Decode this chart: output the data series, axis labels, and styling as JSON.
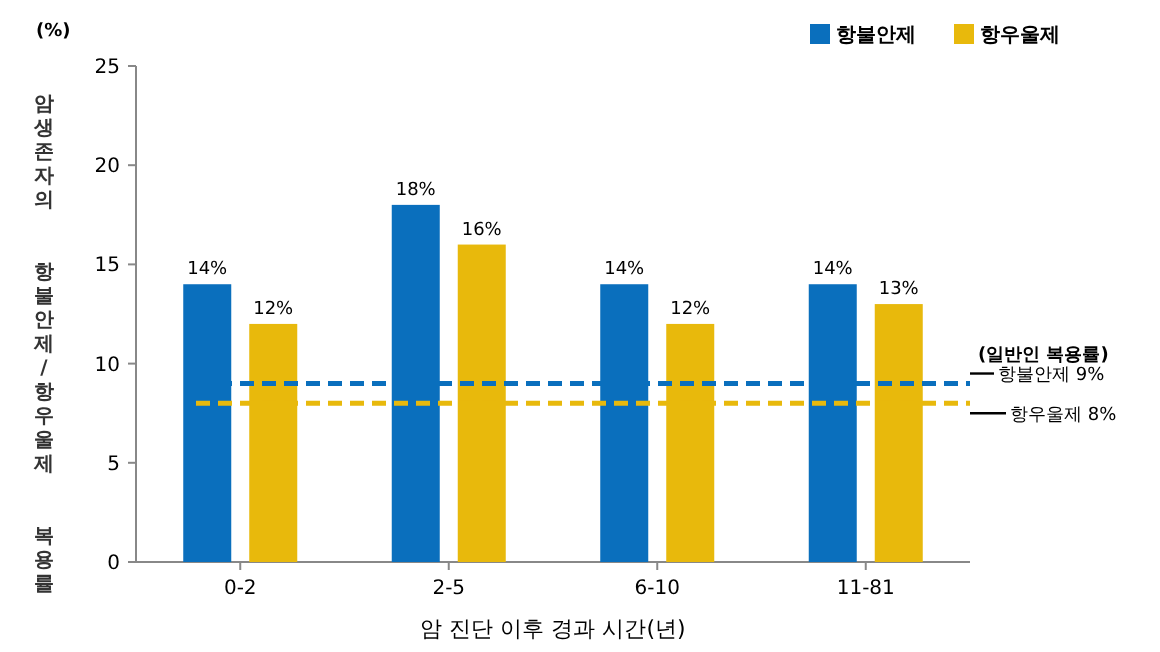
{
  "chart_data": {
    "type": "bar",
    "xlabel": "암 진단 이후 경과 시간(년)",
    "ylabel": "암생존자의 항불안제/항우울제 복용률",
    "categories": [
      "0-2",
      "2-5",
      "6-10",
      "11-81"
    ],
    "series": [
      {
        "name": "항불안제",
        "color": "#0a6fbd",
        "values": [
          14,
          18,
          14,
          14
        ],
        "value_labels": [
          "14%",
          "18%",
          "14%",
          "14%"
        ]
      },
      {
        "name": "항우울제",
        "color": "#e8b90c",
        "values": [
          12,
          16,
          12,
          13
        ],
        "value_labels": [
          "12%",
          "16%",
          "12%",
          "13%"
        ]
      }
    ],
    "ylim": [
      0,
      25
    ],
    "yticks": [
      0,
      5,
      10,
      15,
      20,
      25
    ],
    "grid": false,
    "legend": "top right",
    "ref_lines": [
      {
        "axis": "y",
        "value": 9,
        "label": "항불안제 9%",
        "color": "#0a6fbd",
        "line_style": "dashed"
      },
      {
        "axis": "y",
        "value": 8,
        "label": "항우울제 8%",
        "color": "#e8b90c",
        "line_style": "dashed"
      }
    ],
    "annotations": [
      "(%)",
      "(일반인 복용률)"
    ]
  }
}
